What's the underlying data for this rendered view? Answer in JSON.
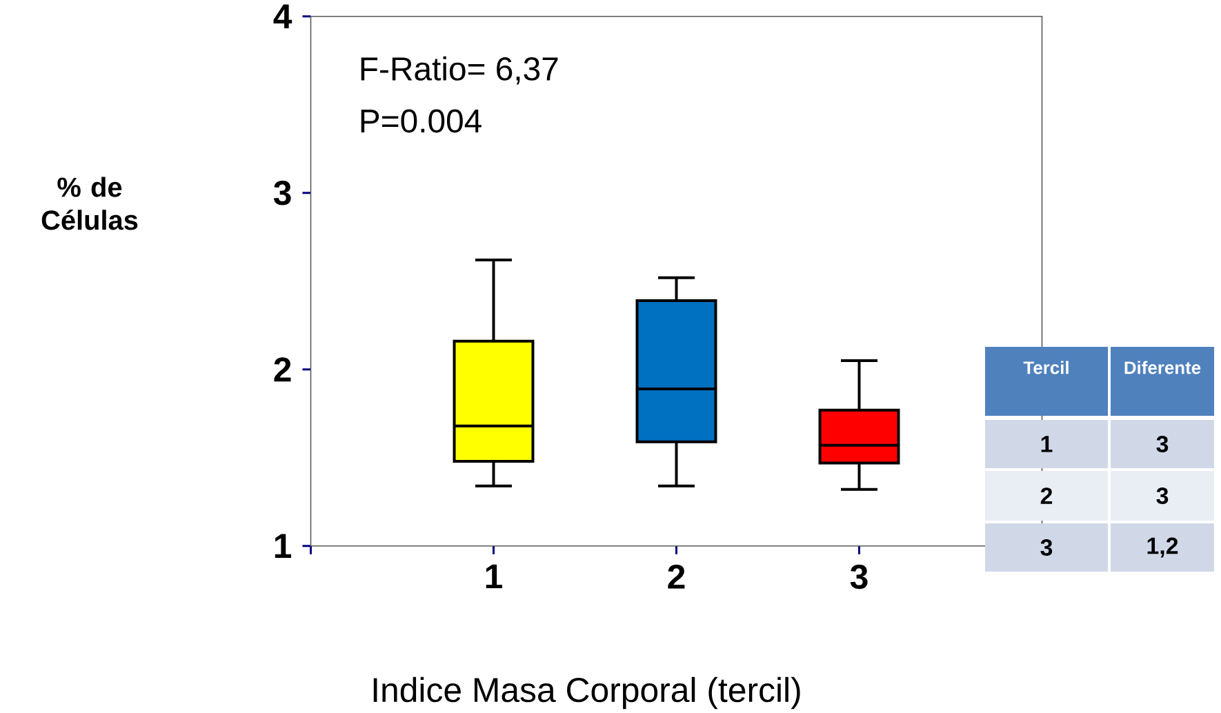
{
  "chart_data": [
    {
      "type": "box",
      "xlabel": "Indice Masa Corporal (tercil)",
      "ylabel": "% de Células",
      "categories": [
        "1",
        "2",
        "3"
      ],
      "colors": [
        "#ffff00",
        "#0070c0",
        "#ff0000"
      ],
      "boxes": [
        {
          "low": 1.34,
          "q1": 1.48,
          "median": 1.68,
          "q3": 2.16,
          "high": 2.62
        },
        {
          "low": 1.34,
          "q1": 1.59,
          "median": 1.89,
          "q3": 2.39,
          "high": 2.52
        },
        {
          "low": 1.32,
          "q1": 1.47,
          "median": 1.57,
          "q3": 1.77,
          "high": 2.05
        }
      ],
      "ylim": [
        1,
        4
      ],
      "yticks": [
        1,
        2,
        3,
        4
      ],
      "grid": false,
      "annotations": [
        "F-Ratio= 6,37",
        "P=0.004"
      ]
    },
    {
      "type": "other",
      "annotations": [
        "Tercil",
        "Diferente",
        "1",
        "3",
        "2",
        "3",
        "3",
        "1,2"
      ]
    }
  ]
}
